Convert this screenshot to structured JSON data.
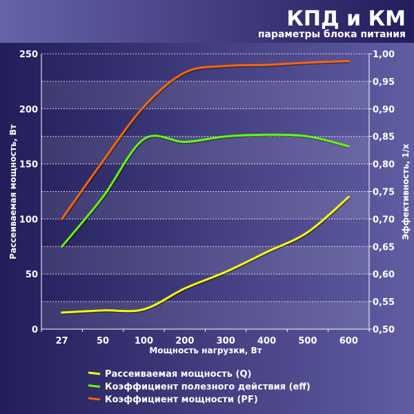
{
  "header": {
    "title": "КПД и КМ",
    "subtitle": "параметры блока питания"
  },
  "colors": {
    "Q": "#ffff00",
    "eff": "#66ff00",
    "PF": "#ff6600",
    "background_dark": "#221e5a",
    "background_light": "#615da3"
  },
  "chart_data": {
    "type": "line",
    "title": "КПД и КМ",
    "subtitle": "параметры блока питания",
    "xlabel": "Мощность нагрузки, Вт",
    "ylabel_left": "Рассеиваемая мощность, Вт",
    "ylabel_right": "Эффективность, 1/x",
    "categories": [
      "27",
      "50",
      "100",
      "200",
      "300",
      "400",
      "500",
      "600"
    ],
    "ylim_left": [
      0,
      250
    ],
    "ylim_right": [
      0.5,
      1.0
    ],
    "yticks_left": [
      "0",
      "50",
      "100",
      "150",
      "200",
      "250"
    ],
    "yticks_right": [
      "0,50",
      "0,55",
      "0,60",
      "0,65",
      "0,70",
      "0,75",
      "0,80",
      "0,85",
      "0,90",
      "0,95",
      "1,00"
    ],
    "grid": true,
    "legend_placement": "bottom",
    "series": [
      {
        "name": "Рассеиваемая мощность (Q)",
        "axis": "left",
        "color": "#ffff00",
        "values": [
          15,
          17,
          18,
          37,
          52,
          70,
          88,
          120
        ]
      },
      {
        "name": "Коэффициент полезного действия (eff)",
        "axis": "right",
        "color": "#66ff00",
        "values": [
          0.65,
          0.74,
          0.845,
          0.84,
          0.85,
          0.853,
          0.85,
          0.832
        ]
      },
      {
        "name": "Коэффициент мощности (PF)",
        "axis": "right",
        "color": "#ff6600",
        "values": [
          0.7,
          0.805,
          0.904,
          0.966,
          0.978,
          0.98,
          0.984,
          0.987
        ]
      }
    ]
  }
}
